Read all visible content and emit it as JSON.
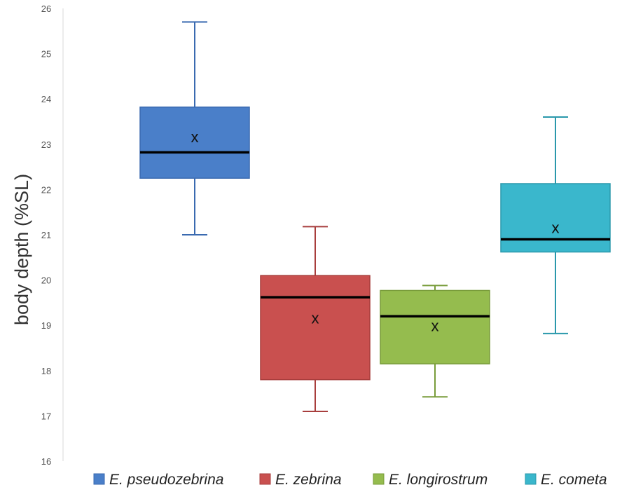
{
  "chart_data": {
    "type": "box",
    "title": "",
    "xlabel": "",
    "ylabel": "body depth (%SL)",
    "ylim": [
      16,
      26
    ],
    "yticks": [
      16,
      17,
      18,
      19,
      20,
      21,
      22,
      23,
      24,
      25,
      26
    ],
    "grid": false,
    "legend_position": "bottom",
    "mean_marker": "x",
    "series": [
      {
        "name": "E. pseudozebrina",
        "color": "#4a7fc9",
        "edge": "#3a6ab0",
        "min": 21.0,
        "q1": 22.25,
        "median": 22.82,
        "q3": 23.82,
        "max": 25.7,
        "mean": 23.15
      },
      {
        "name": "E. zebrina",
        "color": "#c9504f",
        "edge": "#a83e3d",
        "min": 17.1,
        "q1": 17.8,
        "median": 19.62,
        "q3": 20.1,
        "max": 21.18,
        "mean": 19.15
      },
      {
        "name": "E. longirostrum",
        "color": "#95bc4e",
        "edge": "#789c3a",
        "min": 17.42,
        "q1": 18.15,
        "median": 19.2,
        "q3": 19.77,
        "max": 19.88,
        "mean": 18.98
      },
      {
        "name": "E. cometa",
        "color": "#3ab7cc",
        "edge": "#2a98ab",
        "min": 18.82,
        "q1": 20.62,
        "median": 20.9,
        "q3": 22.13,
        "max": 23.6,
        "mean": 21.15
      }
    ]
  }
}
